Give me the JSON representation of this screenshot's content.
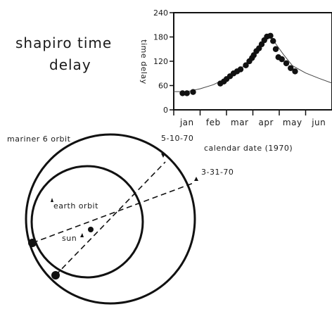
{
  "title_line1": "shapiro time",
  "title_line2": "delay",
  "chart_data": {
    "type": "scatter",
    "ylabel": "time delay",
    "xlabel": "calendar date (1970)",
    "ylim": [
      0,
      240
    ],
    "yticks": [
      0,
      60,
      120,
      180,
      240
    ],
    "months": [
      "jan",
      "feb",
      "mar",
      "apr",
      "may",
      "jun"
    ],
    "xlim": [
      0,
      180
    ],
    "grid": false,
    "series": [
      {
        "x": [
          10,
          15,
          22,
          53,
          57,
          60,
          64,
          68,
          72,
          76,
          82,
          86,
          89,
          91,
          94,
          97,
          100,
          103,
          106,
          110,
          113,
          116,
          119,
          123,
          128,
          133,
          138
        ],
        "y": [
          41,
          41,
          44,
          65,
          70,
          76,
          83,
          90,
          95,
          100,
          110,
          120,
          128,
          135,
          145,
          152,
          162,
          172,
          181,
          183,
          170,
          150,
          130,
          125,
          115,
          103,
          95
        ]
      }
    ],
    "fit_curve": {
      "x": [
        0,
        15,
        30,
        45,
        60,
        75,
        90,
        100,
        108,
        115,
        125,
        135,
        150,
        165,
        180
      ],
      "y": [
        45,
        45,
        52,
        62,
        78,
        98,
        134,
        160,
        184,
        166,
        136,
        109,
        91,
        78,
        66
      ]
    }
  },
  "diagram": {
    "mariner_orbit_label": "mariner 6 orbit",
    "earth_orbit_label": "earth orbit",
    "sun_label": "sun",
    "date_label_1": "5-10-70",
    "date_label_2": "3-31-70"
  }
}
